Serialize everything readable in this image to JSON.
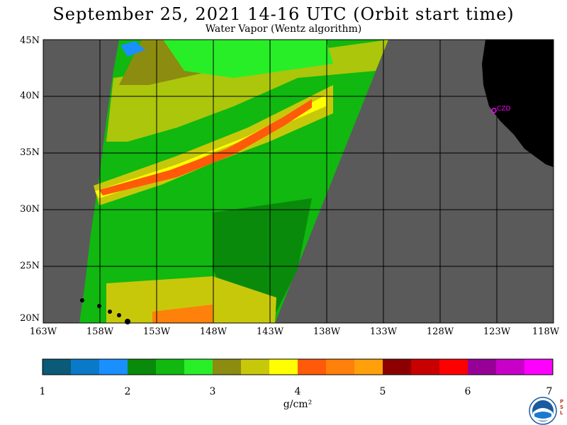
{
  "header": {
    "title": "September 25, 2021  14-16 UTC  (Orbit start time)",
    "subtitle": "Water Vapor (Wentz algorithm)"
  },
  "map": {
    "lat_labels": [
      "45N",
      "40N",
      "35N",
      "30N",
      "25N",
      "20N"
    ],
    "lon_labels": [
      "163W",
      "158W",
      "153W",
      "148W",
      "143W",
      "138W",
      "133W",
      "128W",
      "123W",
      "118W"
    ],
    "lat_range": [
      20,
      45
    ],
    "lon_range": [
      -163,
      -118
    ],
    "station_label": "CZD",
    "colors": {
      "no_data": "#5a5a5a",
      "land": "#000000",
      "grid": "#000000",
      "station": "#ff00ff"
    }
  },
  "colorbar": {
    "ticks": [
      "1",
      "2",
      "3",
      "4",
      "5",
      "6",
      "7"
    ],
    "unit": "g/cm²",
    "range": [
      1,
      7
    ],
    "colors": [
      "#0a5a78",
      "#0a7ac8",
      "#1a90ff",
      "#0a8a0a",
      "#10b810",
      "#28ee28",
      "#8c8c10",
      "#c8c80a",
      "#ffff00",
      "#ff5a0a",
      "#ff800a",
      "#ffa00a",
      "#8c0000",
      "#c80000",
      "#ff0000",
      "#960096",
      "#c800c8",
      "#ff00ff"
    ]
  },
  "logo": {
    "name": "NOAA",
    "side_text": "PSL"
  }
}
